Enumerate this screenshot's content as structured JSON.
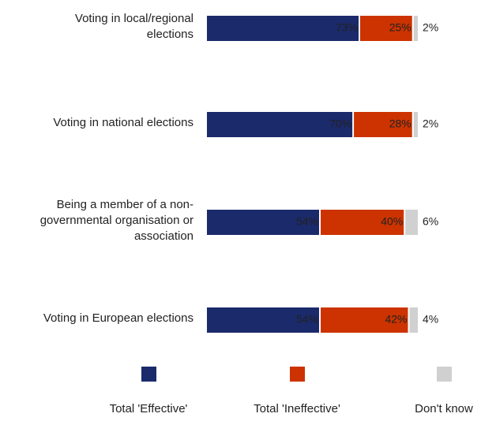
{
  "chart_data": {
    "type": "bar",
    "stacked": true,
    "orientation": "horizontal",
    "categories": [
      "Voting in local/regional elections",
      "Voting in national elections",
      "Being a member of a non-governmental organisation or association",
      "Voting in European elections"
    ],
    "category_lines": [
      [
        "Voting in local/regional",
        "elections"
      ],
      [
        "Voting in national elections"
      ],
      [
        "Being a member of a non-",
        "governmental organisation or",
        "association"
      ],
      [
        "Voting in European elections"
      ]
    ],
    "series": [
      {
        "name": "Total 'Effective'",
        "color": "#1b2a6b",
        "values": [
          73,
          70,
          54,
          54
        ]
      },
      {
        "name": "Total 'Ineffective'",
        "color": "#cc3300",
        "values": [
          25,
          28,
          40,
          42
        ]
      },
      {
        "name": "Don't know",
        "color": "#d0d0d0",
        "values": [
          2,
          2,
          6,
          4
        ]
      }
    ],
    "value_suffix": "%",
    "xlim": [
      0,
      100
    ],
    "grid": false,
    "legend_position": "bottom"
  }
}
